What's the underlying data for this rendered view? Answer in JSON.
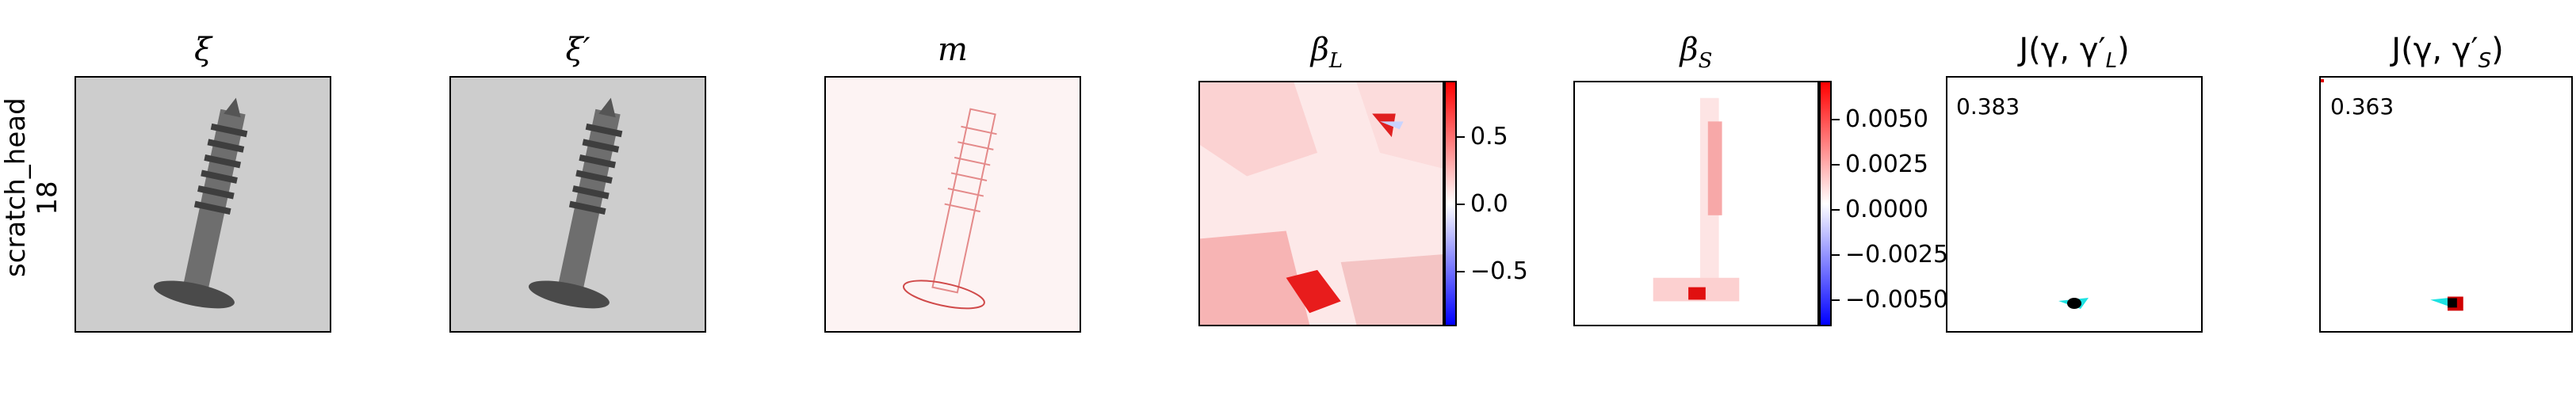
{
  "row_label": {
    "line1": "scratch_head",
    "line2": "18"
  },
  "titles": {
    "xi": "ξ",
    "xi_prime": "ξ′",
    "m": "m",
    "beta_l_main": "β",
    "beta_l_sub": "L",
    "beta_s_main": "β",
    "beta_s_sub": "S",
    "j_l": "J(γ, γ′",
    "j_l_sub": "L",
    "j_s": "J(γ, γ′",
    "j_s_sub": "S"
  },
  "colorbar_l": {
    "ticks": [
      "0.5",
      "0.0",
      "−0.5"
    ],
    "colors": [
      "#ff0000",
      "#ffffff",
      "#0000ff"
    ]
  },
  "colorbar_s": {
    "ticks": [
      "0.0050",
      "0.0025",
      "0.0000",
      "−0.0025",
      "−0.0050"
    ]
  },
  "scores": {
    "j_l": "0.383",
    "j_s": "0.363"
  },
  "icons": {
    "screw": "screw-image"
  }
}
